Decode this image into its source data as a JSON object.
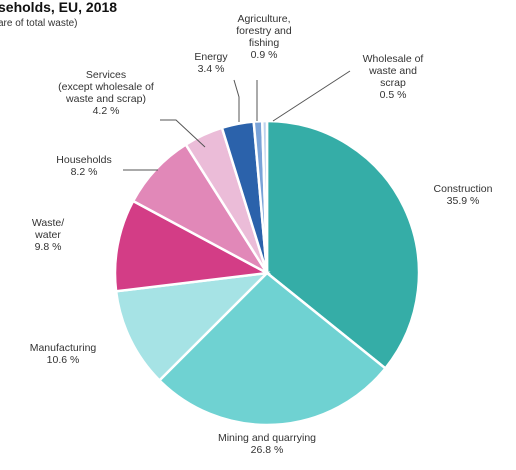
{
  "chart_data": {
    "type": "pie",
    "title": "seholds, EU, 2018",
    "subtitle": "are of total waste)",
    "start_angle_deg": 0,
    "direction": "clockwise",
    "slices": [
      {
        "label": [
          "Construction"
        ],
        "value_label": "35.9 %",
        "value": 35.9,
        "color": "#35ada7"
      },
      {
        "label": [
          "Mining and quarrying"
        ],
        "value_label": "26.8 %",
        "value": 26.8,
        "color": "#6fd2d2"
      },
      {
        "label": [
          "Manufacturing"
        ],
        "value_label": "10.6 %",
        "value": 10.6,
        "color": "#a6e3e5"
      },
      {
        "label": [
          "Waste/",
          "water"
        ],
        "value_label": "9.8 %",
        "value": 9.8,
        "color": "#d33d86"
      },
      {
        "label": [
          "Households"
        ],
        "value_label": "8.2 %",
        "value": 8.2,
        "color": "#e188b8"
      },
      {
        "label": [
          "Services",
          "(except wholesale of",
          "waste and scrap)"
        ],
        "value_label": "4.2 %",
        "value": 4.2,
        "color": "#ebbcd8"
      },
      {
        "label": [
          "Energy"
        ],
        "value_label": "3.4 %",
        "value": 3.4,
        "color": "#2b62ab"
      },
      {
        "label": [
          "Agriculture,",
          "forestry and",
          "fishing"
        ],
        "value_label": "0.9 %",
        "value": 0.9,
        "color": "#7aa3d8"
      },
      {
        "label": [
          "Wholesale of",
          "waste and",
          "scrap"
        ],
        "value_label": "0.5 %",
        "value": 0.5,
        "color": "#bcd2ee"
      }
    ]
  }
}
